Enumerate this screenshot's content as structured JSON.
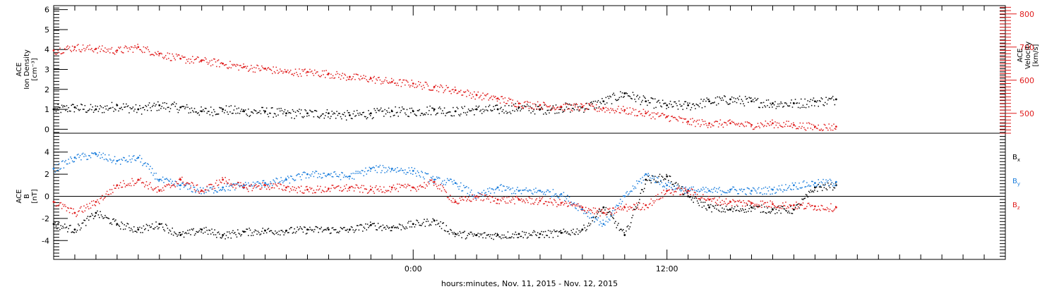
{
  "chart_data": {
    "type": "scatter",
    "footer": "hours:minutes, Nov. 11, 2015 - Nov. 12, 2015",
    "x_range_hours": [
      -17,
      28
    ],
    "x_ticks": [
      {
        "hour": 0,
        "label": "0:00"
      },
      {
        "hour": 12,
        "label": "12:00"
      }
    ],
    "colors": {
      "black": "#000000",
      "red": "#e01b1b",
      "blue": "#1a7ddc"
    },
    "panels": [
      {
        "id": "density-velocity",
        "left_axis": {
          "label_lines": [
            "ACE",
            "Ion Density",
            "[cm⁻³]"
          ],
          "range": [
            -0.2,
            6.2
          ],
          "ticks": [
            0,
            1,
            2,
            3,
            4,
            5,
            6
          ]
        },
        "right_axis": {
          "label_lines": [
            "ACE",
            "Velocity",
            "[km/s]"
          ],
          "range": [
            440,
            825
          ],
          "ticks": [
            500,
            600,
            700,
            800
          ],
          "color": "#e01b1b"
        },
        "series": [
          {
            "color": "black",
            "axis": "left",
            "points": [
              [
                -17,
                1.0
              ],
              [
                -16,
                1.1
              ],
              [
                -15,
                1.0
              ],
              [
                -14,
                1.2
              ],
              [
                -13,
                1.0
              ],
              [
                -12,
                1.2
              ],
              [
                -11,
                1.1
              ],
              [
                -10,
                0.9
              ],
              [
                -9,
                1.0
              ],
              [
                -8,
                0.9
              ],
              [
                -7,
                0.9
              ],
              [
                -6,
                0.8
              ],
              [
                -5,
                0.8
              ],
              [
                -4,
                0.8
              ],
              [
                -3,
                0.7
              ],
              [
                -2,
                0.8
              ],
              [
                -1,
                0.9
              ],
              [
                0,
                0.9
              ],
              [
                1,
                1.0
              ],
              [
                2,
                0.9
              ],
              [
                3,
                1.0
              ],
              [
                4,
                1.0
              ],
              [
                5,
                1.1
              ],
              [
                6,
                1.0
              ],
              [
                7,
                1.1
              ],
              [
                8,
                1.1
              ],
              [
                9,
                1.4
              ],
              [
                10,
                1.8
              ],
              [
                11,
                1.4
              ],
              [
                12,
                1.2
              ],
              [
                13,
                1.2
              ],
              [
                14,
                1.4
              ],
              [
                15,
                1.5
              ],
              [
                16,
                1.4
              ],
              [
                17,
                1.3
              ],
              [
                18,
                1.3
              ],
              [
                19,
                1.4
              ],
              [
                20,
                1.5
              ]
            ]
          },
          {
            "color": "red",
            "axis": "right",
            "points": [
              [
                -17,
                690
              ],
              [
                -16,
                700
              ],
              [
                -15,
                695
              ],
              [
                -14,
                690
              ],
              [
                -13,
                700
              ],
              [
                -12,
                680
              ],
              [
                -11,
                665
              ],
              [
                -10,
                660
              ],
              [
                -9,
                650
              ],
              [
                -8,
                640
              ],
              [
                -7,
                635
              ],
              [
                -6,
                625
              ],
              [
                -5,
                625
              ],
              [
                -4,
                620
              ],
              [
                -3,
                610
              ],
              [
                -2,
                605
              ],
              [
                -1,
                595
              ],
              [
                0,
                590
              ],
              [
                1,
                580
              ],
              [
                2,
                570
              ],
              [
                3,
                555
              ],
              [
                4,
                545
              ],
              [
                5,
                530
              ],
              [
                6,
                525
              ],
              [
                7,
                520
              ],
              [
                8,
                520
              ],
              [
                9,
                515
              ],
              [
                10,
                510
              ],
              [
                11,
                500
              ],
              [
                12,
                490
              ],
              [
                13,
                475
              ],
              [
                14,
                470
              ],
              [
                15,
                470
              ],
              [
                16,
                465
              ],
              [
                17,
                470
              ],
              [
                18,
                465
              ],
              [
                19,
                460
              ],
              [
                20,
                460
              ]
            ]
          }
        ]
      },
      {
        "id": "magnetic-field",
        "left_axis": {
          "label_lines": [
            "ACE",
            "B",
            "[nT]"
          ],
          "range": [
            -5.7,
            5.7
          ],
          "ticks": [
            -4,
            -2,
            0,
            2,
            4
          ]
        },
        "zero_line": 0,
        "legend": [
          {
            "label": "B",
            "sub": "x",
            "color": "black"
          },
          {
            "label": "B",
            "sub": "y",
            "color": "blue"
          },
          {
            "label": "B",
            "sub": "z",
            "color": "red"
          }
        ],
        "series": [
          {
            "name": "Bx",
            "color": "black",
            "points": [
              [
                -17,
                -2.5
              ],
              [
                -16,
                -3.0
              ],
              [
                -15,
                -1.5
              ],
              [
                -14,
                -2.5
              ],
              [
                -13,
                -3.0
              ],
              [
                -12,
                -2.5
              ],
              [
                -11,
                -3.5
              ],
              [
                -10,
                -3.0
              ],
              [
                -9,
                -3.5
              ],
              [
                -8,
                -3.2
              ],
              [
                -7,
                -3.1
              ],
              [
                -6,
                -3.1
              ],
              [
                -5,
                -3.0
              ],
              [
                -4,
                -3.0
              ],
              [
                -3,
                -3.0
              ],
              [
                -2,
                -2.6
              ],
              [
                -1,
                -2.8
              ],
              [
                0,
                -2.5
              ],
              [
                1,
                -2.2
              ],
              [
                2,
                -3.4
              ],
              [
                3,
                -3.5
              ],
              [
                4,
                -3.5
              ],
              [
                5,
                -3.4
              ],
              [
                6,
                -3.4
              ],
              [
                7,
                -3.3
              ],
              [
                8,
                -3.0
              ],
              [
                9,
                -1.0
              ],
              [
                10,
                -3.5
              ],
              [
                11,
                1.5
              ],
              [
                12,
                1.8
              ],
              [
                13,
                0.0
              ],
              [
                14,
                -1.0
              ],
              [
                15,
                -1.2
              ],
              [
                16,
                -1.0
              ],
              [
                17,
                -1.2
              ],
              [
                18,
                -1.2
              ],
              [
                19,
                0.8
              ],
              [
                20,
                1.0
              ]
            ]
          },
          {
            "name": "By",
            "color": "blue",
            "points": [
              [
                -17,
                2.5
              ],
              [
                -16,
                3.5
              ],
              [
                -15,
                3.8
              ],
              [
                -14,
                3.2
              ],
              [
                -13,
                3.5
              ],
              [
                -12,
                1.5
              ],
              [
                -11,
                1.0
              ],
              [
                -10,
                0.5
              ],
              [
                -9,
                0.8
              ],
              [
                -8,
                1.0
              ],
              [
                -7,
                1.2
              ],
              [
                -6,
                1.5
              ],
              [
                -5,
                2.0
              ],
              [
                -4,
                2.0
              ],
              [
                -3,
                1.8
              ],
              [
                -2,
                2.5
              ],
              [
                -1,
                2.5
              ],
              [
                0,
                2.3
              ],
              [
                1,
                1.5
              ],
              [
                2,
                1.2
              ],
              [
                3,
                0.0
              ],
              [
                4,
                0.8
              ],
              [
                5,
                0.5
              ],
              [
                6,
                0.5
              ],
              [
                7,
                0.2
              ],
              [
                8,
                -1.2
              ],
              [
                9,
                -2.5
              ],
              [
                10,
                0.0
              ],
              [
                11,
                2.0
              ],
              [
                12,
                1.0
              ],
              [
                13,
                0.6
              ],
              [
                14,
                0.5
              ],
              [
                15,
                0.6
              ],
              [
                16,
                0.5
              ],
              [
                17,
                0.6
              ],
              [
                18,
                1.0
              ],
              [
                19,
                1.2
              ],
              [
                20,
                1.3
              ]
            ]
          },
          {
            "name": "Bz",
            "color": "red",
            "points": [
              [
                -17,
                -0.5
              ],
              [
                -16,
                -1.5
              ],
              [
                -15,
                -0.5
              ],
              [
                -14,
                1.0
              ],
              [
                -13,
                1.5
              ],
              [
                -12,
                0.5
              ],
              [
                -11,
                1.5
              ],
              [
                -10,
                0.5
              ],
              [
                -9,
                1.5
              ],
              [
                -8,
                0.8
              ],
              [
                -7,
                1.0
              ],
              [
                -6,
                0.8
              ],
              [
                -5,
                0.6
              ],
              [
                -4,
                0.7
              ],
              [
                -3,
                0.8
              ],
              [
                -2,
                0.6
              ],
              [
                -1,
                0.8
              ],
              [
                0,
                0.8
              ],
              [
                1,
                1.3
              ],
              [
                2,
                -0.5
              ],
              [
                3,
                0.0
              ],
              [
                4,
                -0.3
              ],
              [
                5,
                -0.3
              ],
              [
                6,
                -0.4
              ],
              [
                7,
                -0.6
              ],
              [
                8,
                -1.0
              ],
              [
                9,
                -1.5
              ],
              [
                10,
                -1.0
              ],
              [
                11,
                -0.8
              ],
              [
                12,
                0.5
              ],
              [
                13,
                0.5
              ],
              [
                14,
                -0.3
              ],
              [
                15,
                -0.5
              ],
              [
                16,
                -0.6
              ],
              [
                17,
                -0.7
              ],
              [
                18,
                -0.8
              ],
              [
                19,
                -0.9
              ],
              [
                20,
                -1.0
              ]
            ]
          }
        ]
      }
    ]
  }
}
